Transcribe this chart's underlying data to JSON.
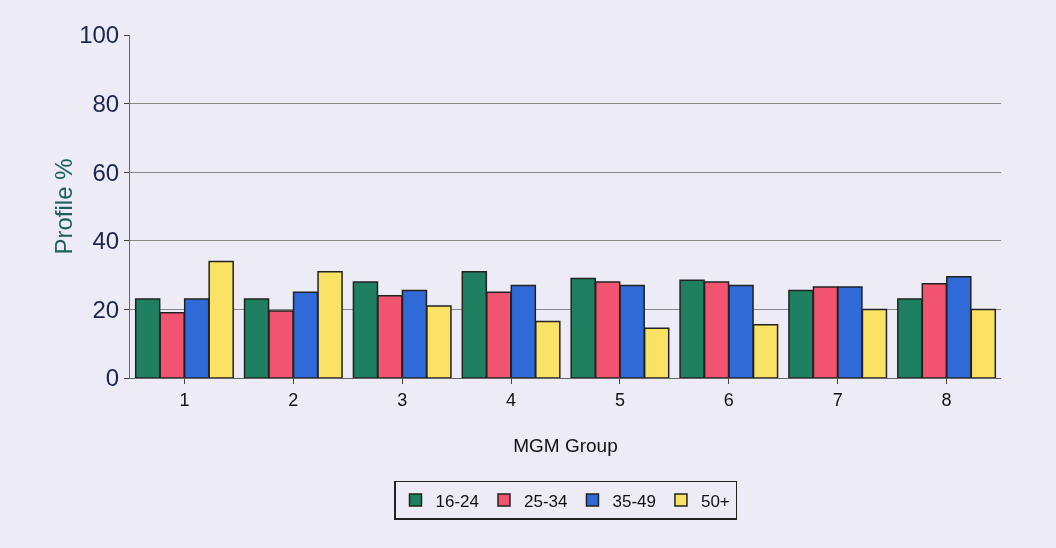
{
  "chart_data": {
    "type": "bar",
    "xlabel": "MGM Group",
    "ylabel": "Profile %",
    "categories": [
      "1",
      "2",
      "3",
      "4",
      "5",
      "6",
      "7",
      "8"
    ],
    "series": [
      {
        "name": "16-24",
        "color": "#1e8060",
        "values": [
          23,
          23,
          28,
          31,
          29,
          28.5,
          25.5,
          23
        ]
      },
      {
        "name": "25-34",
        "color": "#f0546e",
        "values": [
          19,
          19.5,
          24,
          25,
          28,
          28,
          26.5,
          27.5
        ]
      },
      {
        "name": "35-49",
        "color": "#2f6ad8",
        "values": [
          23,
          25,
          25.5,
          27,
          27,
          27,
          26.5,
          29.5
        ]
      },
      {
        "name": "50+",
        "color": "#fae264",
        "values": [
          34,
          31,
          21,
          16.5,
          14.5,
          15.5,
          20,
          20
        ]
      }
    ],
    "ylim": [
      0,
      100
    ],
    "yticks": [
      0,
      20,
      40,
      60,
      80,
      100
    ],
    "grid": "y",
    "legend": "bottom"
  }
}
